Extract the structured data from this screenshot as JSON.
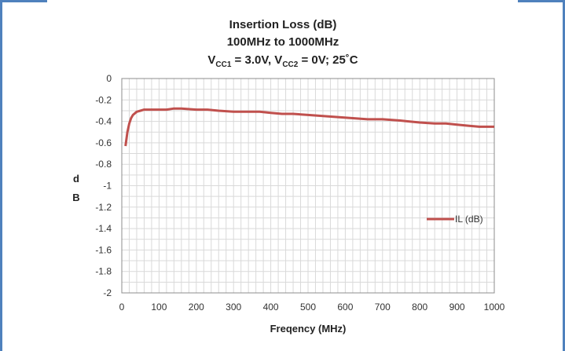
{
  "chart_data": {
    "type": "line",
    "title_lines": [
      "Insertion Loss (dB)",
      "100MHz to 1000MHz"
    ],
    "title_line3": {
      "v1": "V",
      "sub1": "CC1",
      "mid": " = 3.0V, V",
      "sub2": "CC2",
      "end": " = 0V; 25˚C"
    },
    "xlabel": "Freqency (MHz)",
    "ylabel_chars": [
      "d",
      "B"
    ],
    "xlim": [
      0,
      1000
    ],
    "ylim": [
      -2,
      0
    ],
    "x_ticks": [
      0,
      100,
      200,
      300,
      400,
      500,
      600,
      700,
      800,
      900,
      1000
    ],
    "y_ticks": [
      0,
      -0.2,
      -0.4,
      -0.6,
      -0.8,
      -1,
      -1.2,
      -1.4,
      -1.6,
      -1.8,
      -2
    ],
    "y_tick_labels": [
      "0",
      "-0.2",
      "-0.4",
      "-0.6",
      "-0.8",
      "-1",
      "-1.2",
      "-1.4",
      "-1.6",
      "-1.8",
      "-2"
    ],
    "x_minor_step": 20,
    "y_minor_step": 0.1,
    "grid": true,
    "legend_position": "right-middle",
    "series": [
      {
        "name": "IL (dB)",
        "color": "#c0504d",
        "x": [
          10,
          15,
          20,
          25,
          30,
          40,
          50,
          60,
          80,
          100,
          120,
          140,
          160,
          200,
          230,
          260,
          300,
          340,
          370,
          400,
          430,
          460,
          500,
          540,
          580,
          620,
          660,
          700,
          740,
          770,
          800,
          840,
          870,
          900,
          930,
          960,
          1000
        ],
        "y": [
          -0.63,
          -0.5,
          -0.42,
          -0.37,
          -0.34,
          -0.31,
          -0.3,
          -0.29,
          -0.29,
          -0.29,
          -0.29,
          -0.28,
          -0.28,
          -0.29,
          -0.29,
          -0.3,
          -0.31,
          -0.31,
          -0.31,
          -0.32,
          -0.33,
          -0.33,
          -0.34,
          -0.35,
          -0.36,
          -0.37,
          -0.38,
          -0.38,
          -0.39,
          -0.4,
          -0.41,
          -0.42,
          -0.42,
          -0.43,
          -0.44,
          -0.45,
          -0.45
        ]
      }
    ]
  }
}
